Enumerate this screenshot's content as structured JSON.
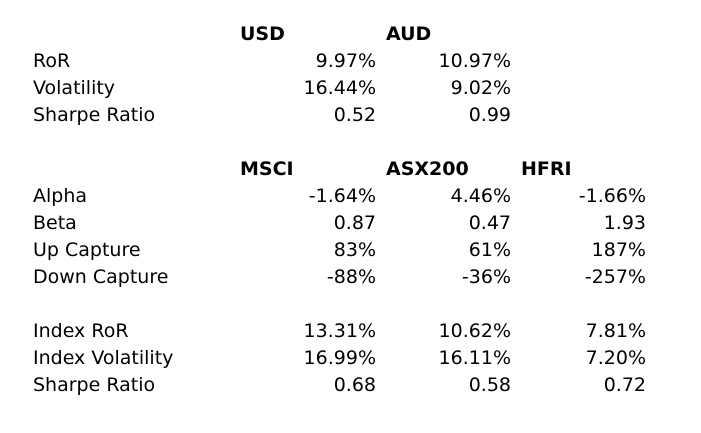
{
  "section1": {
    "headers": [
      "USD",
      "AUD"
    ],
    "rows": [
      {
        "label": "RoR",
        "values": [
          "9.97%",
          "10.97%"
        ]
      },
      {
        "label": "Volatility",
        "values": [
          "16.44%",
          "9.02%"
        ]
      },
      {
        "label": "Sharpe Ratio",
        "values": [
          "0.52",
          "0.99"
        ]
      }
    ]
  },
  "section2": {
    "headers": [
      "MSCI",
      "ASX200",
      "HFRI"
    ],
    "rows": [
      {
        "label": "Alpha",
        "values": [
          "-1.64%",
          "4.46%",
          "-1.66%"
        ]
      },
      {
        "label": "Beta",
        "values": [
          "0.87",
          "0.47",
          "1.93"
        ]
      },
      {
        "label": "Up Capture",
        "values": [
          "83%",
          "61%",
          "187%"
        ]
      },
      {
        "label": "Down Capture",
        "values": [
          "-88%",
          "-36%",
          "-257%"
        ]
      }
    ]
  },
  "section3": {
    "rows": [
      {
        "label": "Index RoR",
        "values": [
          "13.31%",
          "10.62%",
          "7.81%"
        ]
      },
      {
        "label": "Index Volatility",
        "values": [
          "16.99%",
          "16.11%",
          "7.20%"
        ]
      },
      {
        "label": "Sharpe Ratio",
        "values": [
          "0.68",
          "0.58",
          "0.72"
        ]
      }
    ]
  }
}
